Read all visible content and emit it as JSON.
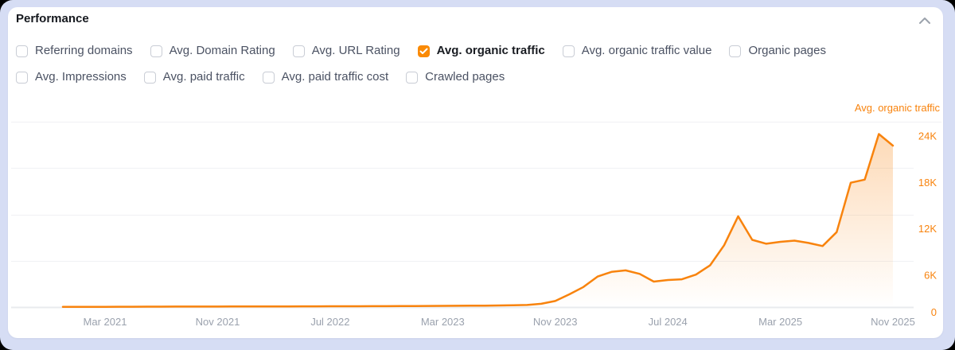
{
  "panel": {
    "title": "Performance",
    "collapse_icon": "chevron-up"
  },
  "metrics": {
    "row1": [
      {
        "label": "Referring domains",
        "checked": false
      },
      {
        "label": "Avg. Domain Rating",
        "checked": false
      },
      {
        "label": "Avg. URL Rating",
        "checked": false
      },
      {
        "label": "Avg. organic traffic",
        "checked": true
      },
      {
        "label": "Avg. organic traffic value",
        "checked": false
      },
      {
        "label": "Organic pages",
        "checked": false
      }
    ],
    "row2": [
      {
        "label": "Avg. Impressions",
        "checked": false
      },
      {
        "label": "Avg. paid traffic",
        "checked": false
      },
      {
        "label": "Avg. paid traffic cost",
        "checked": false
      },
      {
        "label": "Crawled pages",
        "checked": false
      }
    ]
  },
  "chart_data": {
    "type": "area",
    "title": "Avg. organic traffic",
    "ylabel_side": "right",
    "ylim": [
      0,
      24000
    ],
    "grid": "horizontal",
    "start_month": "Dec 2020",
    "end_month": "Nov 2025",
    "y_ticks": [
      {
        "label": "24K",
        "value": 24000
      },
      {
        "label": "18K",
        "value": 18000
      },
      {
        "label": "12K",
        "value": 12000
      },
      {
        "label": "6K",
        "value": 6000
      },
      {
        "label": "0",
        "value": 0
      }
    ],
    "x_ticks": [
      {
        "label": "Mar 2021",
        "month_index": 3
      },
      {
        "label": "Nov 2021",
        "month_index": 11
      },
      {
        "label": "Jul 2022",
        "month_index": 19
      },
      {
        "label": "Mar 2023",
        "month_index": 27
      },
      {
        "label": "Nov 2023",
        "month_index": 35
      },
      {
        "label": "Jul 2024",
        "month_index": 43
      },
      {
        "label": "Mar 2025",
        "month_index": 51
      },
      {
        "label": "Nov 2025",
        "month_index": 59
      }
    ],
    "series": [
      {
        "name": "Avg. organic traffic",
        "monthly_values": [
          20,
          25,
          30,
          36,
          42,
          46,
          50,
          54,
          57,
          60,
          63,
          66,
          70,
          74,
          78,
          82,
          86,
          90,
          94,
          98,
          103,
          108,
          113,
          118,
          124,
          132,
          140,
          150,
          162,
          175,
          190,
          210,
          235,
          270,
          420,
          780,
          1650,
          2600,
          3950,
          4550,
          4750,
          4300,
          3300,
          3500,
          3600,
          4200,
          5400,
          8000,
          11750,
          8700,
          8200,
          8450,
          8600,
          8300,
          7900,
          9700,
          16100,
          16500,
          22400,
          20900
        ]
      }
    ],
    "colors": {
      "line": "#f8830d",
      "axis_labels": "#f8830d",
      "x_labels": "#9aa1ad",
      "gridline": "#f0f1f4",
      "axis_line": "#e9ebee",
      "area_top": "rgba(248,132,16,0.32)",
      "area_bottom": "rgba(248,132,16,0)"
    }
  }
}
